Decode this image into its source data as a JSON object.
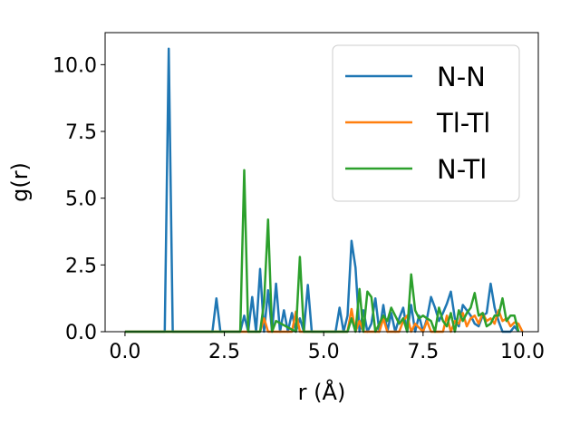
{
  "chart_data": {
    "type": "line",
    "xlabel": "r (Å)",
    "ylabel": "g(r)",
    "xlim": [
      -0.5,
      10.4
    ],
    "ylim": [
      0,
      11.2
    ],
    "xticks": [
      0.0,
      2.5,
      5.0,
      7.5,
      10.0
    ],
    "yticks": [
      0.0,
      2.5,
      5.0,
      7.5,
      10.0
    ],
    "xtick_labels": [
      "0.0",
      "2.5",
      "5.0",
      "7.5",
      "10.0"
    ],
    "ytick_labels": [
      "0.0",
      "2.5",
      "5.0",
      "7.5",
      "10.0"
    ],
    "grid": false,
    "legend_position": "top-right",
    "series": [
      {
        "name": "N-N",
        "color": "#1f77b4",
        "x": [
          0,
          1.0,
          1.1,
          1.2,
          2.2,
          2.3,
          2.4,
          2.9,
          3.0,
          3.1,
          3.2,
          3.3,
          3.4,
          3.5,
          3.6,
          3.7,
          3.8,
          3.9,
          4.0,
          4.1,
          4.2,
          4.3,
          4.4,
          4.5,
          4.6,
          4.7,
          4.8,
          4.9,
          5.3,
          5.4,
          5.5,
          5.6,
          5.7,
          5.8,
          5.9,
          6.0,
          6.1,
          6.2,
          6.3,
          6.4,
          6.5,
          6.6,
          6.7,
          6.8,
          6.9,
          7.0,
          7.1,
          7.2,
          7.3,
          7.4,
          7.5,
          7.6,
          7.7,
          7.8,
          7.9,
          8.0,
          8.1,
          8.2,
          8.3,
          8.4,
          8.5,
          8.6,
          8.7,
          8.8,
          8.9,
          9.0,
          9.1,
          9.2,
          9.3,
          9.4,
          9.5,
          9.6,
          9.7,
          9.8,
          9.9
        ],
        "y": [
          0,
          0,
          10.6,
          0,
          0,
          1.25,
          0,
          0,
          0.6,
          0,
          1.3,
          0,
          2.35,
          0,
          1.55,
          0,
          1.8,
          0,
          0.8,
          0,
          0.7,
          0,
          0.5,
          0,
          1.75,
          0,
          0,
          0,
          0,
          0.9,
          0,
          0.6,
          3.4,
          2.4,
          0,
          0.8,
          0,
          0.3,
          1.25,
          0,
          1.0,
          0,
          0.7,
          0,
          0.5,
          0.9,
          0,
          1.0,
          0,
          0.6,
          0,
          0.5,
          1.3,
          0.9,
          0.4,
          0.7,
          1.05,
          1.5,
          0.5,
          0.2,
          1.0,
          0.8,
          0.6,
          0.3,
          0.2,
          0.6,
          0.7,
          1.8,
          0.9,
          0.4,
          0,
          0,
          0,
          0.2,
          0.0
        ]
      },
      {
        "name": "Tl-Tl",
        "color": "#ff7f0e",
        "x": [
          0,
          3.4,
          3.5,
          3.6,
          3.7,
          4.2,
          4.3,
          4.4,
          4.5,
          5.6,
          5.7,
          5.8,
          5.9,
          6.0,
          6.4,
          6.5,
          6.6,
          6.9,
          7.0,
          7.1,
          7.2,
          7.3,
          7.5,
          7.6,
          7.7,
          8.0,
          8.1,
          8.2,
          8.3,
          8.4,
          8.5,
          8.6,
          8.7,
          8.8,
          8.9,
          9.0,
          9.1,
          9.2,
          9.3,
          9.4,
          9.5,
          9.6,
          9.7,
          9.8,
          9.9,
          10.0
        ],
        "y": [
          0,
          0,
          0.5,
          0,
          0,
          0,
          0.75,
          0,
          0,
          0,
          0.85,
          0,
          0.4,
          0,
          0,
          0.5,
          0,
          0,
          0.4,
          0.6,
          0,
          0.3,
          0,
          0.4,
          0,
          0,
          0.6,
          0,
          0.4,
          0.3,
          0.7,
          0.2,
          0.5,
          0.6,
          0.3,
          0.7,
          0.4,
          0.5,
          0.3,
          0.8,
          0.4,
          0.5,
          0.2,
          0.35,
          0.3,
          0
        ]
      },
      {
        "name": "N-Tl",
        "color": "#2ca02c",
        "x": [
          0,
          2.9,
          3.0,
          3.1,
          3.4,
          3.5,
          3.6,
          3.7,
          3.8,
          4.3,
          4.4,
          4.5,
          5.5,
          5.6,
          5.7,
          5.8,
          5.9,
          6.0,
          6.1,
          6.2,
          6.3,
          6.4,
          6.5,
          6.6,
          6.7,
          6.8,
          6.9,
          7.0,
          7.1,
          7.2,
          7.3,
          7.4,
          7.5,
          7.6,
          7.7,
          7.8,
          7.9,
          8.0,
          8.1,
          8.2,
          8.3,
          8.4,
          8.5,
          8.6,
          8.7,
          8.8,
          8.9,
          9.0,
          9.1,
          9.2,
          9.3,
          9.4,
          9.5,
          9.6,
          9.7,
          9.8,
          9.9
        ],
        "y": [
          0,
          0,
          6.05,
          0,
          0,
          1.1,
          4.2,
          0,
          0.4,
          0,
          2.8,
          0,
          0,
          0,
          0.5,
          0,
          1.6,
          0,
          1.5,
          1.3,
          0,
          0.3,
          0.6,
          0.4,
          0.9,
          0.6,
          0.3,
          0.5,
          0,
          2.15,
          0.8,
          0.5,
          0.6,
          0.5,
          0.4,
          0,
          0.9,
          0.4,
          0.2,
          0.7,
          0,
          0.8,
          0.4,
          0.7,
          0.9,
          1.45,
          0.6,
          0.7,
          0.2,
          0.3,
          0.6,
          0.6,
          1.25,
          0.4,
          0.6,
          0.6,
          0
        ]
      }
    ]
  }
}
